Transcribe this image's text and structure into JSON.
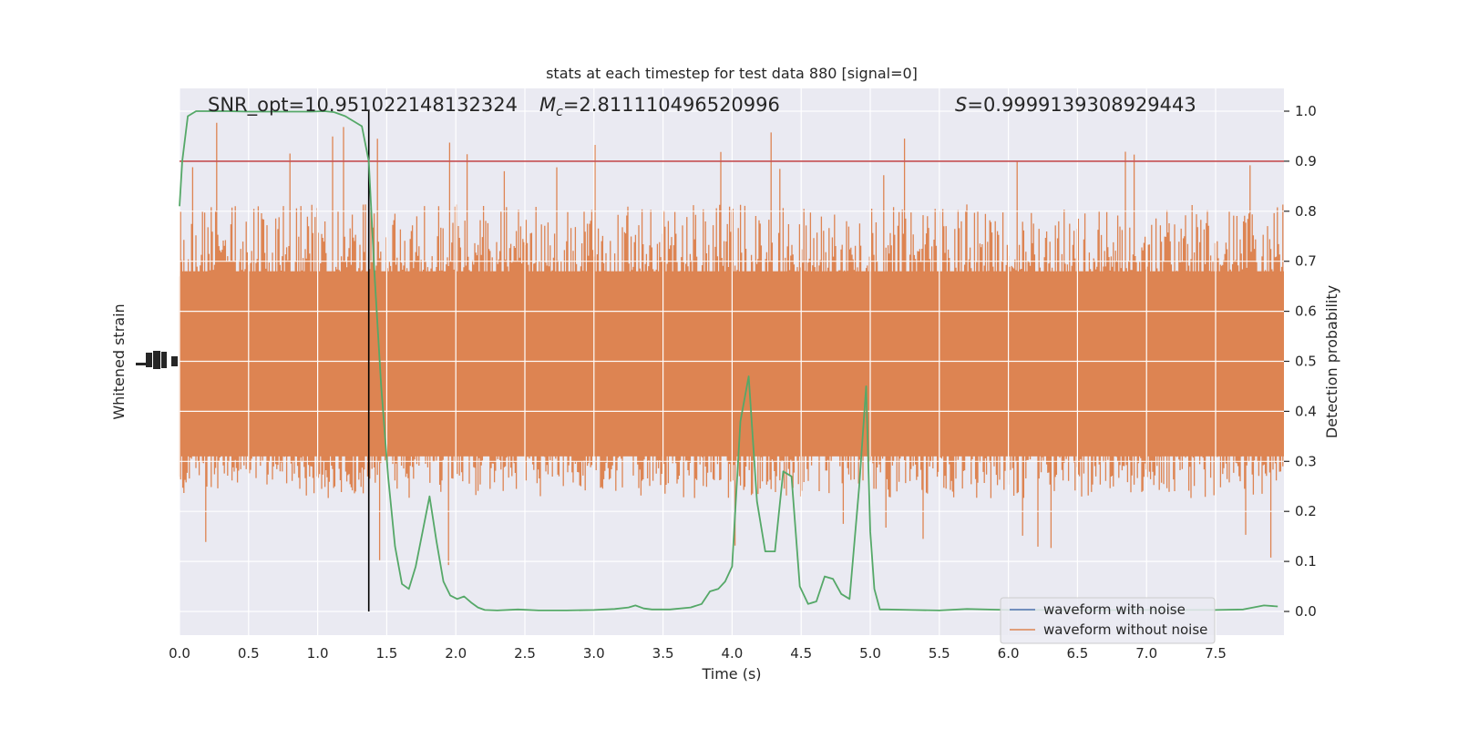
{
  "chart_data": {
    "type": "line",
    "title": "stats at each timestep for test data 880 [signal=0]",
    "xlabel": "Time (s)",
    "ylabel_left": "Whitened strain",
    "ylabel_right": "Detection probability",
    "xlim": [
      0.0,
      8.0
    ],
    "ylim_right": [
      -0.05,
      1.05
    ],
    "x_ticks": [
      "0.0",
      "0.5",
      "1.0",
      "1.5",
      "2.0",
      "2.5",
      "3.0",
      "3.5",
      "4.0",
      "4.5",
      "5.0",
      "5.5",
      "6.0",
      "6.5",
      "7.0",
      "7.5"
    ],
    "y_ticks_right": [
      "0.0",
      "0.1",
      "0.2",
      "0.3",
      "0.4",
      "0.5",
      "0.6",
      "0.7",
      "0.8",
      "0.9",
      "1.0"
    ],
    "grid": true,
    "legend_placement": "lower right",
    "annotations": {
      "snr": "SNR_opt=10.951022148132324",
      "mc_symbol": "M",
      "mc_sub": "c",
      "mc_value": "=2.811110496520996",
      "s_symbol": "S",
      "s_value": "=0.9999139308929443"
    },
    "threshold": 0.9,
    "detection_time": 1.37,
    "series": [
      {
        "name": "waveform with noise",
        "color": "#4c72b0",
        "kind": "strain"
      },
      {
        "name": "waveform without noise",
        "color": "#dd8452",
        "kind": "strain",
        "envelope_upper": 0.81,
        "envelope_lower": 0.23,
        "core_upper": 0.68,
        "core_lower": 0.31
      }
    ],
    "detection_probability": {
      "color": "#55a868",
      "x": [
        0.0,
        0.02,
        0.06,
        0.12,
        0.2,
        0.35,
        0.5,
        0.65,
        0.8,
        0.95,
        1.05,
        1.12,
        1.2,
        1.26,
        1.32,
        1.37,
        1.41,
        1.46,
        1.51,
        1.56,
        1.61,
        1.66,
        1.71,
        1.76,
        1.81,
        1.86,
        1.91,
        1.96,
        2.01,
        2.06,
        2.11,
        2.16,
        2.21,
        2.3,
        2.45,
        2.6,
        2.8,
        3.0,
        3.15,
        3.25,
        3.3,
        3.36,
        3.42,
        3.55,
        3.7,
        3.78,
        3.84,
        3.9,
        3.95,
        4.0,
        4.06,
        4.12,
        4.18,
        4.24,
        4.31,
        4.37,
        4.43,
        4.49,
        4.55,
        4.61,
        4.67,
        4.73,
        4.79,
        4.85,
        4.92,
        4.97,
        5.0,
        5.03,
        5.07,
        5.12,
        5.3,
        5.5,
        5.7,
        6.0,
        6.3,
        6.6,
        6.9,
        7.2,
        7.5,
        7.7,
        7.85,
        7.95
      ],
      "y": [
        0.81,
        0.9,
        0.99,
        1.0,
        1.0,
        1.0,
        0.999,
        0.999,
        0.999,
        0.999,
        1.0,
        0.998,
        0.99,
        0.98,
        0.97,
        0.9,
        0.68,
        0.45,
        0.27,
        0.13,
        0.055,
        0.045,
        0.09,
        0.16,
        0.23,
        0.14,
        0.06,
        0.032,
        0.025,
        0.03,
        0.018,
        0.008,
        0.003,
        0.002,
        0.004,
        0.002,
        0.002,
        0.003,
        0.005,
        0.008,
        0.012,
        0.006,
        0.004,
        0.004,
        0.008,
        0.015,
        0.04,
        0.045,
        0.06,
        0.09,
        0.38,
        0.47,
        0.22,
        0.12,
        0.12,
        0.28,
        0.27,
        0.05,
        0.015,
        0.02,
        0.07,
        0.065,
        0.035,
        0.025,
        0.25,
        0.45,
        0.16,
        0.045,
        0.004,
        0.004,
        0.003,
        0.002,
        0.005,
        0.003,
        0.003,
        0.002,
        0.003,
        0.003,
        0.003,
        0.004,
        0.012,
        0.01
      ]
    }
  }
}
